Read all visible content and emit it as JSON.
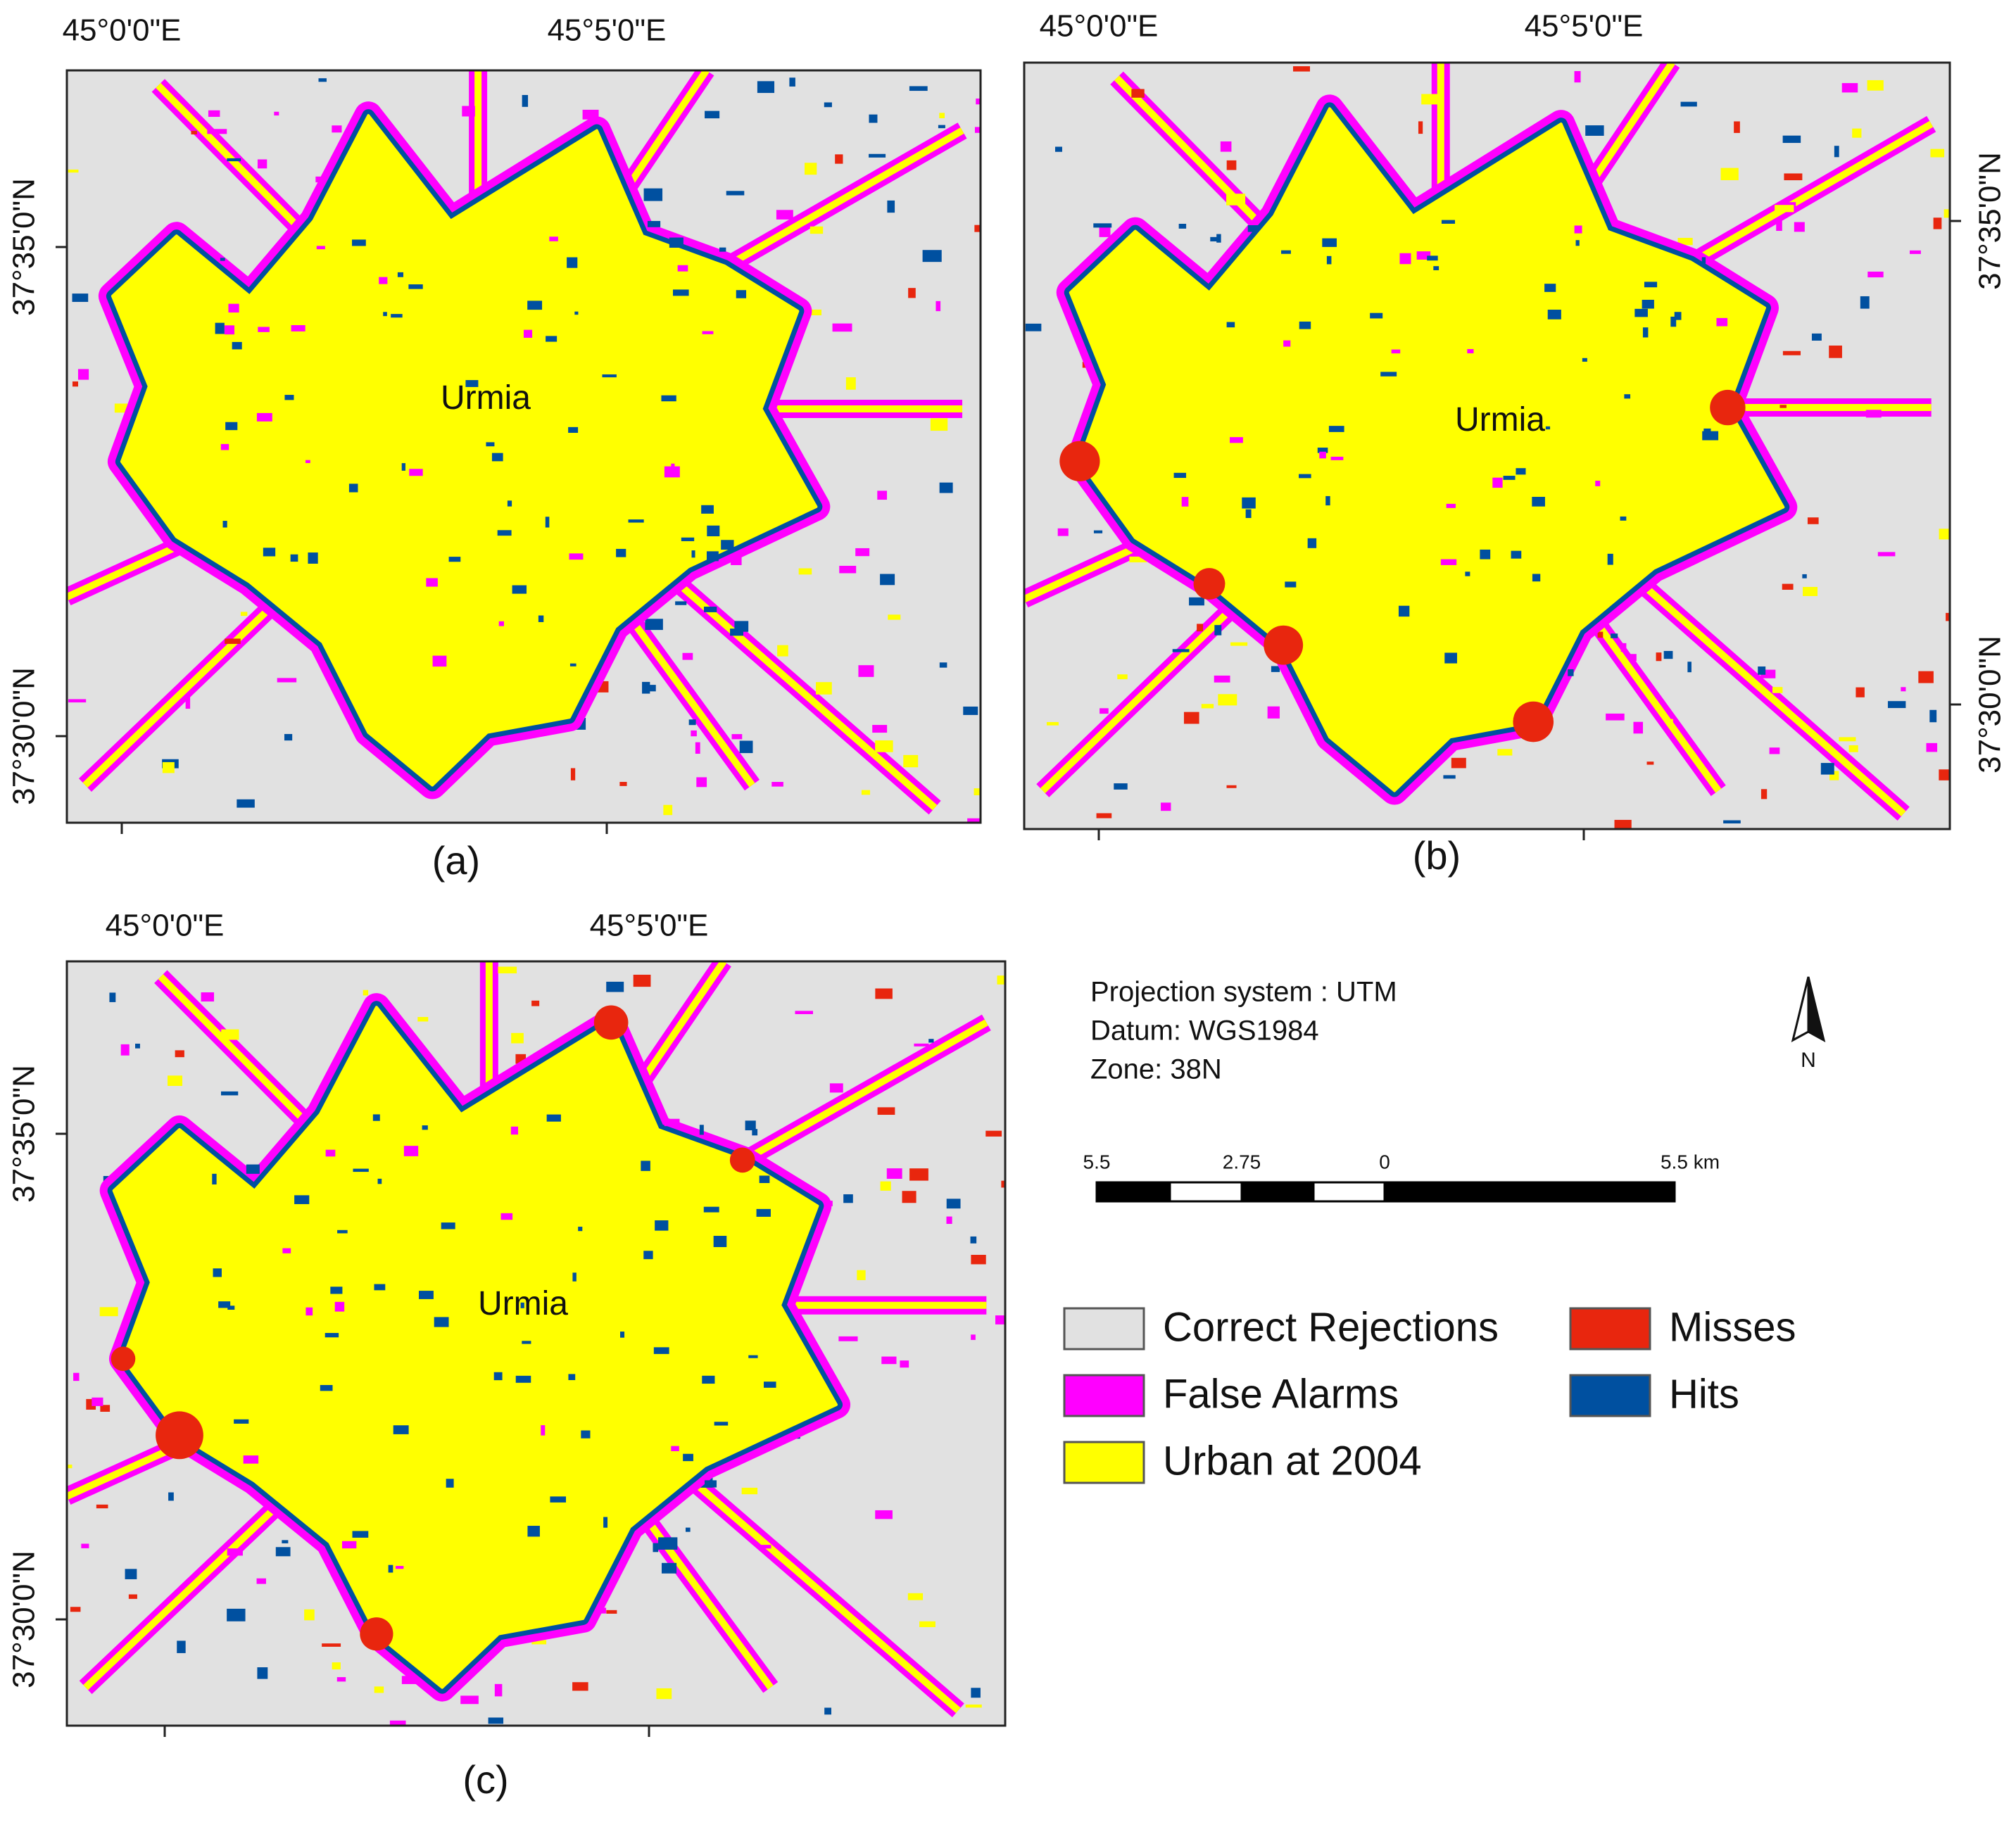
{
  "panels": [
    {
      "label": "(a)",
      "city": "Urmia",
      "lon_labels": [
        "45°0'0\"E",
        "45°5'0\"E"
      ],
      "lat_labels": [
        "37°35'0\"N",
        "37°30'0\"N"
      ]
    },
    {
      "label": "(b)",
      "city": "Urmia",
      "lon_labels": [
        "45°0'0\"E",
        "45°5'0\"E"
      ],
      "lat_labels": [
        "37°35'0\"N",
        "37°30'0\"N"
      ]
    },
    {
      "label": "(c)",
      "city": "Urmia",
      "lon_labels": [
        "45°0'0\"E",
        "45°5'0\"E"
      ],
      "lat_labels": [
        "37°35'0\"N",
        "37°30'0\"N"
      ]
    }
  ],
  "info": {
    "projection": "Projection system : UTM",
    "datum": "Datum: WGS1984",
    "zone": "Zone: 38N"
  },
  "north": "N",
  "scale_bar": {
    "labels": [
      "5.5",
      "2.75",
      "0",
      "5.5 km"
    ]
  },
  "legend": [
    {
      "label": "Correct Rejections",
      "color": "#e1e1e1"
    },
    {
      "label": "False Alarms",
      "color": "#ff00ff"
    },
    {
      "label": "Urban at 2004",
      "color": "#ffff00"
    },
    {
      "label": "Misses",
      "color": "#e8260e"
    },
    {
      "label": "Hits",
      "color": "#0050a0"
    }
  ]
}
